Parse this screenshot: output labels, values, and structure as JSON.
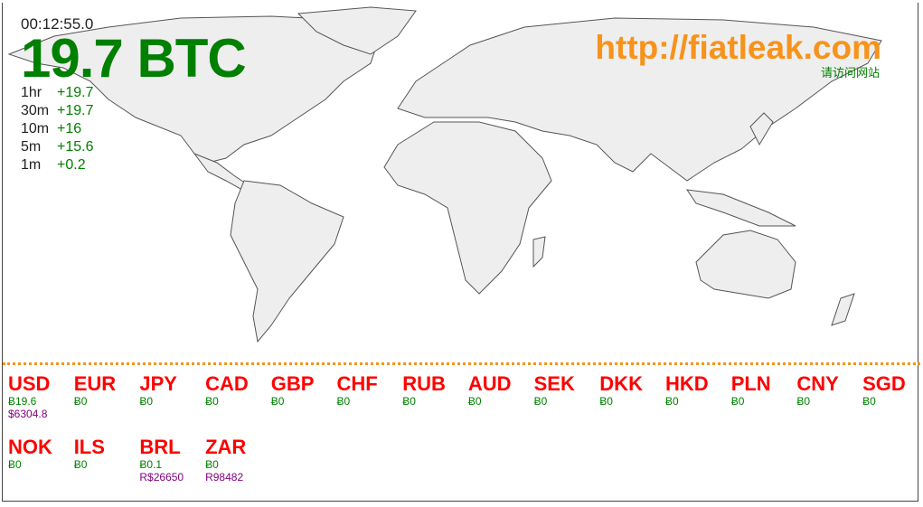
{
  "header": {
    "clock": "00:12:55.0",
    "total": "19.7 BTC",
    "site": "http://fiatleak.com",
    "site_sub": "请访问网站"
  },
  "stats": [
    {
      "period": "1hr",
      "value": "+19.7"
    },
    {
      "period": "30m",
      "value": "+19.7"
    },
    {
      "period": "10m",
      "value": "+16"
    },
    {
      "period": "5m",
      "value": "+15.6"
    },
    {
      "period": "1m",
      "value": "+0.2"
    }
  ],
  "currencies": [
    {
      "code": "USD",
      "btc": "Ƀ19.6",
      "fiat": "$6304.8"
    },
    {
      "code": "EUR",
      "btc": "Ƀ0",
      "fiat": ""
    },
    {
      "code": "JPY",
      "btc": "Ƀ0",
      "fiat": ""
    },
    {
      "code": "CAD",
      "btc": "Ƀ0",
      "fiat": ""
    },
    {
      "code": "GBP",
      "btc": "Ƀ0",
      "fiat": ""
    },
    {
      "code": "CHF",
      "btc": "Ƀ0",
      "fiat": ""
    },
    {
      "code": "RUB",
      "btc": "Ƀ0",
      "fiat": ""
    },
    {
      "code": "AUD",
      "btc": "Ƀ0",
      "fiat": ""
    },
    {
      "code": "SEK",
      "btc": "Ƀ0",
      "fiat": ""
    },
    {
      "code": "DKK",
      "btc": "Ƀ0",
      "fiat": ""
    },
    {
      "code": "HKD",
      "btc": "Ƀ0",
      "fiat": ""
    },
    {
      "code": "PLN",
      "btc": "Ƀ0",
      "fiat": ""
    },
    {
      "code": "CNY",
      "btc": "Ƀ0",
      "fiat": ""
    },
    {
      "code": "SGD",
      "btc": "Ƀ0",
      "fiat": ""
    },
    {
      "code": "NOK",
      "btc": "Ƀ0",
      "fiat": ""
    },
    {
      "code": "ILS",
      "btc": "Ƀ0",
      "fiat": ""
    },
    {
      "code": "BRL",
      "btc": "Ƀ0.1",
      "fiat": "R$26650"
    },
    {
      "code": "ZAR",
      "btc": "Ƀ0",
      "fiat": "R98482"
    }
  ],
  "colors": {
    "accent": "#f7931a",
    "positive": "#008000",
    "currency": "#ff0000",
    "fiat": "#800080"
  }
}
